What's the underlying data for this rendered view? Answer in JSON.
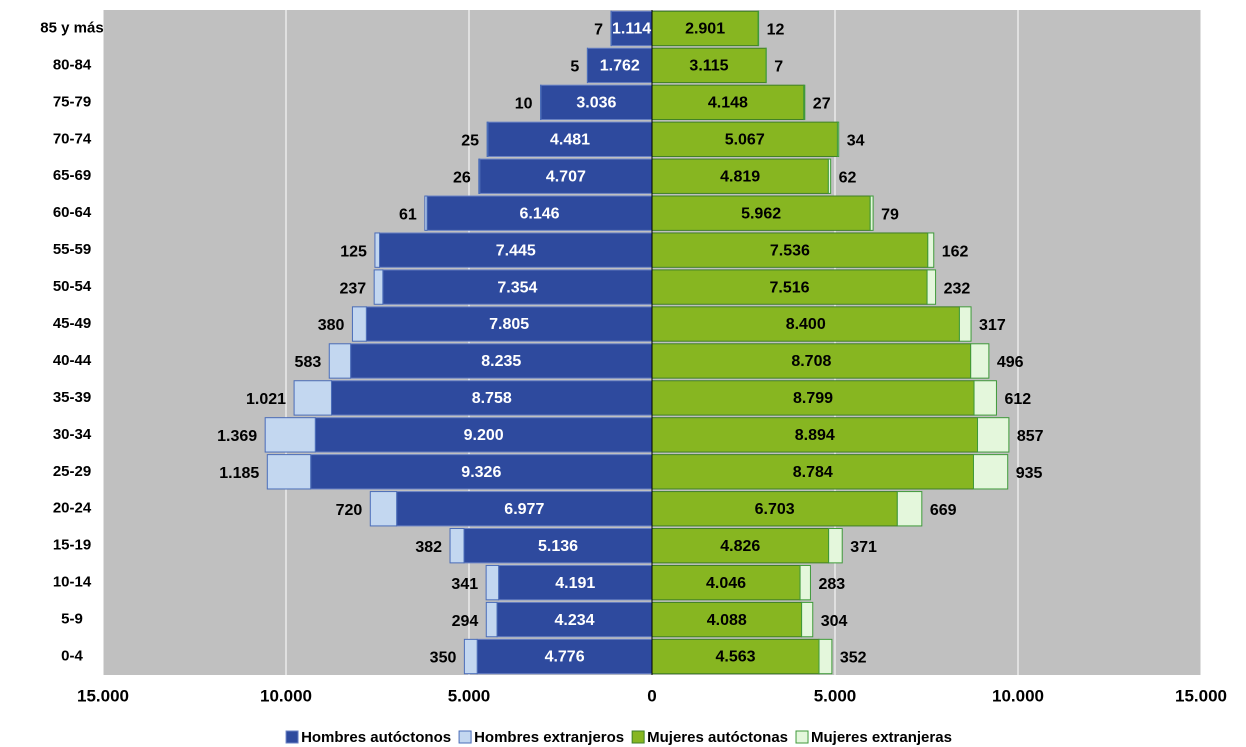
{
  "chart_data": {
    "type": "pyramid",
    "categories": [
      "85 y más",
      "80-84",
      "75-79",
      "70-74",
      "65-69",
      "60-64",
      "55-59",
      "50-54",
      "45-49",
      "40-44",
      "35-39",
      "30-34",
      "25-29",
      "20-24",
      "15-19",
      "10-14",
      "5-9",
      "0-4"
    ],
    "series": [
      {
        "name": "Hombres autóctonos",
        "color": "#2e4a9e",
        "border": "#6a82c4",
        "side": "left",
        "label_color": "#ffffff",
        "values": [
          1114,
          1762,
          3036,
          4481,
          4707,
          6146,
          7445,
          7354,
          7805,
          8235,
          8758,
          9200,
          9326,
          6977,
          5136,
          4191,
          4234,
          4776
        ],
        "value_labels": [
          "1.114",
          "1.762",
          "3.036",
          "4.481",
          "4.707",
          "6.146",
          "7.445",
          "7.354",
          "7.805",
          "8.235",
          "8.758",
          "9.200",
          "9.326",
          "6.977",
          "5.136",
          "4.191",
          "4.234",
          "4.776"
        ]
      },
      {
        "name": "Hombres extranjeros",
        "color": "#c3d7f0",
        "border": "#4a6cb8",
        "side": "left",
        "label_color": "#000000",
        "values": [
          7,
          5,
          10,
          25,
          26,
          61,
          125,
          237,
          380,
          583,
          1021,
          1369,
          1185,
          720,
          382,
          341,
          294,
          350
        ],
        "value_labels": [
          "7",
          "5",
          "10",
          "25",
          "26",
          "61",
          "125",
          "237",
          "380",
          "583",
          "1.021",
          "1.369",
          "1.185",
          "720",
          "382",
          "341",
          "294",
          "350"
        ]
      },
      {
        "name": "Mujeres autóctonas",
        "color": "#87b621",
        "border": "#3f7f26",
        "side": "right",
        "label_color": "#000000",
        "values": [
          2901,
          3115,
          4148,
          5067,
          4819,
          5962,
          7536,
          7516,
          8400,
          8708,
          8799,
          8894,
          8784,
          6703,
          4826,
          4046,
          4088,
          4563
        ],
        "value_labels": [
          "2.901",
          "3.115",
          "4.148",
          "5.067",
          "4.819",
          "5.962",
          "7.536",
          "7.516",
          "8.400",
          "8.708",
          "8.799",
          "8.894",
          "8.784",
          "6.703",
          "4.826",
          "4.046",
          "4.088",
          "4.563"
        ]
      },
      {
        "name": "Mujeres extranjeras",
        "color": "#e4f7dc",
        "border": "#3f9a3a",
        "side": "right",
        "label_color": "#000000",
        "values": [
          12,
          7,
          27,
          34,
          62,
          79,
          162,
          232,
          317,
          496,
          612,
          857,
          935,
          669,
          371,
          283,
          304,
          352
        ],
        "value_labels": [
          "12",
          "7",
          "27",
          "34",
          "62",
          "79",
          "162",
          "232",
          "317",
          "496",
          "612",
          "857",
          "935",
          "669",
          "371",
          "283",
          "304",
          "352"
        ]
      }
    ],
    "xlim": [
      -15000,
      15000
    ],
    "xticks": [
      {
        "value": -15000,
        "label": "15.000"
      },
      {
        "value": -10000,
        "label": "10.000"
      },
      {
        "value": -5000,
        "label": "5.000"
      },
      0,
      {
        "value": 5000,
        "label": "5.000"
      },
      {
        "value": 10000,
        "label": "10.000"
      },
      {
        "value": 15000,
        "label": "15.000"
      }
    ],
    "grid": true,
    "background": "#c0c0c0",
    "legend": "bottom"
  }
}
